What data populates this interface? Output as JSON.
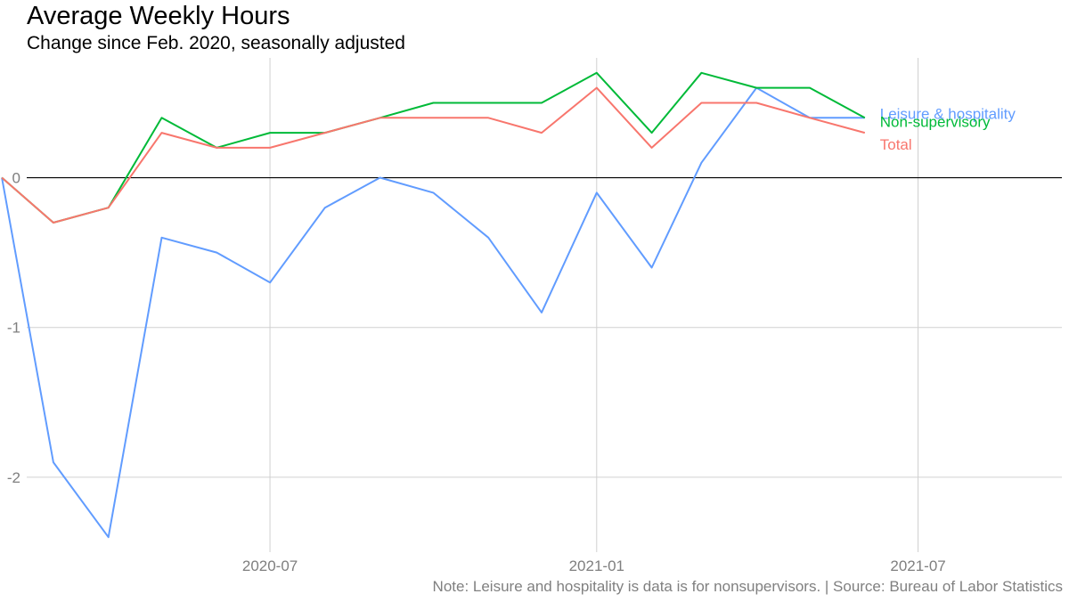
{
  "chart_data": {
    "type": "line",
    "title": "Average Weekly Hours",
    "subtitle": "Change since Feb. 2020, seasonally adjusted",
    "caption": "Note: Leisure and hospitality is data is for nonsupervisors. | Source: Bureau of Labor Statistics",
    "xlabel": "",
    "ylabel": "",
    "x": [
      "2020-03",
      "2020-04",
      "2020-05",
      "2020-06",
      "2020-07",
      "2020-08",
      "2020-09",
      "2020-10",
      "2020-11",
      "2020-12",
      "2021-01",
      "2021-02",
      "2021-03",
      "2021-04",
      "2021-05",
      "2021-06",
      "2021-07",
      "2021-08"
    ],
    "x_ticks": [
      {
        "date": "2020-07",
        "label": "2020-07"
      },
      {
        "date": "2021-01",
        "label": "2021-01"
      },
      {
        "date": "2021-07",
        "label": "2021-07"
      }
    ],
    "y_ticks": [
      {
        "value": 0,
        "label": "0"
      },
      {
        "value": -1,
        "label": "-1"
      },
      {
        "value": -2,
        "label": "-2"
      }
    ],
    "ylim": [
      -2.5,
      0.8
    ],
    "xlim": [
      "2020-02-15",
      "2021-09-20"
    ],
    "grid": true,
    "zero_line": true,
    "legend": "direct labels at line ends",
    "series": [
      {
        "name": "Leisure & hospitality",
        "color": "#619CFF",
        "x": [
          "2020-02",
          "2020-03",
          "2020-04",
          "2020-05",
          "2020-06",
          "2020-07",
          "2020-08",
          "2020-09",
          "2020-10",
          "2020-11",
          "2020-12",
          "2021-01",
          "2021-02",
          "2021-03",
          "2021-04",
          "2021-05",
          "2021-06"
        ],
        "values": [
          0,
          -1.9,
          -2.4,
          -0.4,
          -0.5,
          -0.7,
          -0.2,
          0.0,
          -0.1,
          -0.4,
          -0.9,
          -0.1,
          -0.6,
          0.1,
          0.6,
          0.4,
          0.4
        ]
      },
      {
        "name": "Non-supervisory",
        "color": "#00BA38",
        "x": [
          "2020-02",
          "2020-03",
          "2020-04",
          "2020-05",
          "2020-06",
          "2020-07",
          "2020-08",
          "2020-09",
          "2020-10",
          "2020-11",
          "2020-12",
          "2021-01",
          "2021-02",
          "2021-03",
          "2021-04",
          "2021-05",
          "2021-06"
        ],
        "values": [
          0,
          -0.3,
          -0.2,
          0.4,
          0.2,
          0.3,
          0.3,
          0.4,
          0.5,
          0.5,
          0.5,
          0.7,
          0.3,
          0.7,
          0.6,
          0.6,
          0.4
        ]
      },
      {
        "name": "Total",
        "color": "#F8766D",
        "x": [
          "2020-02",
          "2020-03",
          "2020-04",
          "2020-05",
          "2020-06",
          "2020-07",
          "2020-08",
          "2020-09",
          "2020-10",
          "2020-11",
          "2020-12",
          "2021-01",
          "2021-02",
          "2021-03",
          "2021-04",
          "2021-05",
          "2021-06"
        ],
        "values": [
          0,
          -0.3,
          -0.2,
          0.3,
          0.2,
          0.2,
          0.3,
          0.4,
          0.4,
          0.4,
          0.3,
          0.6,
          0.2,
          0.5,
          0.5,
          0.4,
          0.3
        ]
      }
    ]
  }
}
